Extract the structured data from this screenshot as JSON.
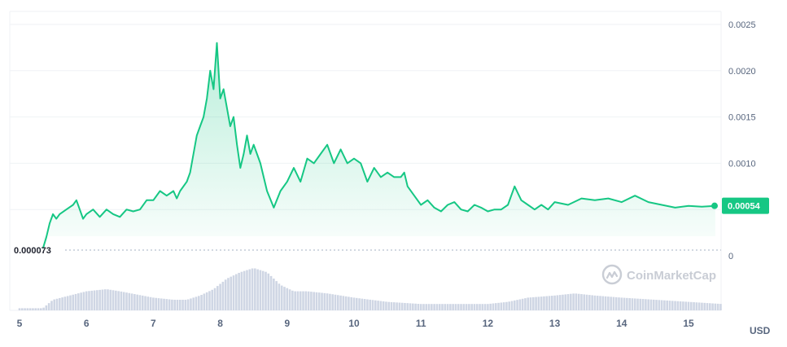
{
  "chart_data": {
    "type": "area",
    "x_unit": "day",
    "y_ticks": [
      "0.0025",
      "0.0020",
      "0.0015",
      "0.0010",
      "0.00054",
      "0"
    ],
    "x_ticks": [
      "5",
      "6",
      "7",
      "8",
      "9",
      "10",
      "11",
      "12",
      "13",
      "14",
      "15"
    ],
    "unit": "USD",
    "min_label": "0.000073",
    "current_value_label": "0.00054",
    "watermark": "CoinMarketCap",
    "ylim": [
      0,
      0.0025
    ],
    "price_series": {
      "x": [
        5.35,
        5.4,
        5.45,
        5.5,
        5.55,
        5.6,
        5.7,
        5.8,
        5.85,
        5.9,
        5.95,
        6.0,
        6.1,
        6.2,
        6.3,
        6.4,
        6.5,
        6.6,
        6.7,
        6.8,
        6.9,
        7.0,
        7.1,
        7.2,
        7.3,
        7.35,
        7.4,
        7.5,
        7.55,
        7.6,
        7.65,
        7.7,
        7.75,
        7.8,
        7.85,
        7.9,
        7.95,
        8.0,
        8.05,
        8.1,
        8.15,
        8.2,
        8.25,
        8.3,
        8.35,
        8.4,
        8.45,
        8.5,
        8.55,
        8.6,
        8.7,
        8.8,
        8.9,
        9.0,
        9.1,
        9.2,
        9.3,
        9.4,
        9.5,
        9.6,
        9.7,
        9.8,
        9.9,
        10.0,
        10.1,
        10.2,
        10.3,
        10.4,
        10.5,
        10.6,
        10.7,
        10.75,
        10.8,
        10.9,
        11.0,
        11.1,
        11.2,
        11.3,
        11.4,
        11.5,
        11.6,
        11.7,
        11.8,
        11.9,
        12.0,
        12.1,
        12.2,
        12.3,
        12.4,
        12.5,
        12.6,
        12.7,
        12.8,
        12.9,
        13.0,
        13.2,
        13.4,
        13.6,
        13.8,
        14.0,
        14.2,
        14.4,
        14.6,
        14.8,
        15.0,
        15.2,
        15.4
      ],
      "y": [
        8e-05,
        0.0002,
        0.00035,
        0.00045,
        0.0004,
        0.00045,
        0.0005,
        0.00055,
        0.0006,
        0.0005,
        0.0004,
        0.00045,
        0.0005,
        0.00042,
        0.0005,
        0.00045,
        0.00042,
        0.0005,
        0.00048,
        0.0005,
        0.0006,
        0.0006,
        0.0007,
        0.00065,
        0.0007,
        0.00062,
        0.0007,
        0.0008,
        0.0009,
        0.0011,
        0.0013,
        0.0014,
        0.0015,
        0.0017,
        0.002,
        0.0018,
        0.0023,
        0.0017,
        0.0018,
        0.0016,
        0.0014,
        0.0015,
        0.0012,
        0.00095,
        0.0011,
        0.0013,
        0.0011,
        0.0012,
        0.0011,
        0.001,
        0.0007,
        0.00052,
        0.0007,
        0.0008,
        0.00095,
        0.0008,
        0.00105,
        0.001,
        0.0011,
        0.0012,
        0.001,
        0.00115,
        0.001,
        0.00105,
        0.001,
        0.0008,
        0.00095,
        0.00085,
        0.0009,
        0.00085,
        0.00085,
        0.0009,
        0.00075,
        0.00065,
        0.00055,
        0.0006,
        0.00052,
        0.00048,
        0.00055,
        0.00058,
        0.0005,
        0.00048,
        0.00055,
        0.00052,
        0.00048,
        0.0005,
        0.0005,
        0.00055,
        0.00075,
        0.0006,
        0.00055,
        0.0005,
        0.00055,
        0.0005,
        0.00058,
        0.00055,
        0.00062,
        0.0006,
        0.00062,
        0.00058,
        0.00065,
        0.00058,
        0.00055,
        0.00052,
        0.00054,
        0.00053,
        0.00054
      ]
    },
    "volume_series": {
      "x": [
        5.0,
        5.35,
        5.5,
        6.0,
        6.3,
        6.5,
        7.0,
        7.3,
        7.5,
        7.7,
        7.9,
        8.1,
        8.3,
        8.5,
        8.7,
        8.9,
        9.1,
        9.3,
        9.6,
        10.0,
        10.5,
        11.0,
        11.5,
        12.0,
        12.3,
        12.6,
        13.0,
        13.3,
        13.6,
        14.0,
        14.5,
        15.0,
        15.5
      ],
      "y": [
        0.05,
        0.05,
        0.25,
        0.45,
        0.5,
        0.45,
        0.3,
        0.25,
        0.25,
        0.35,
        0.5,
        0.75,
        0.9,
        1.0,
        0.9,
        0.6,
        0.45,
        0.45,
        0.4,
        0.3,
        0.2,
        0.15,
        0.15,
        0.15,
        0.2,
        0.3,
        0.35,
        0.4,
        0.35,
        0.3,
        0.25,
        0.2,
        0.15
      ]
    }
  },
  "colors": {
    "line": "#16c784",
    "grid": "#eff2f5",
    "volume": "#cfd6e4",
    "axis_text": "#58667e",
    "min_dash": "#a6b0c3",
    "watermark": "#c9cdd5"
  }
}
